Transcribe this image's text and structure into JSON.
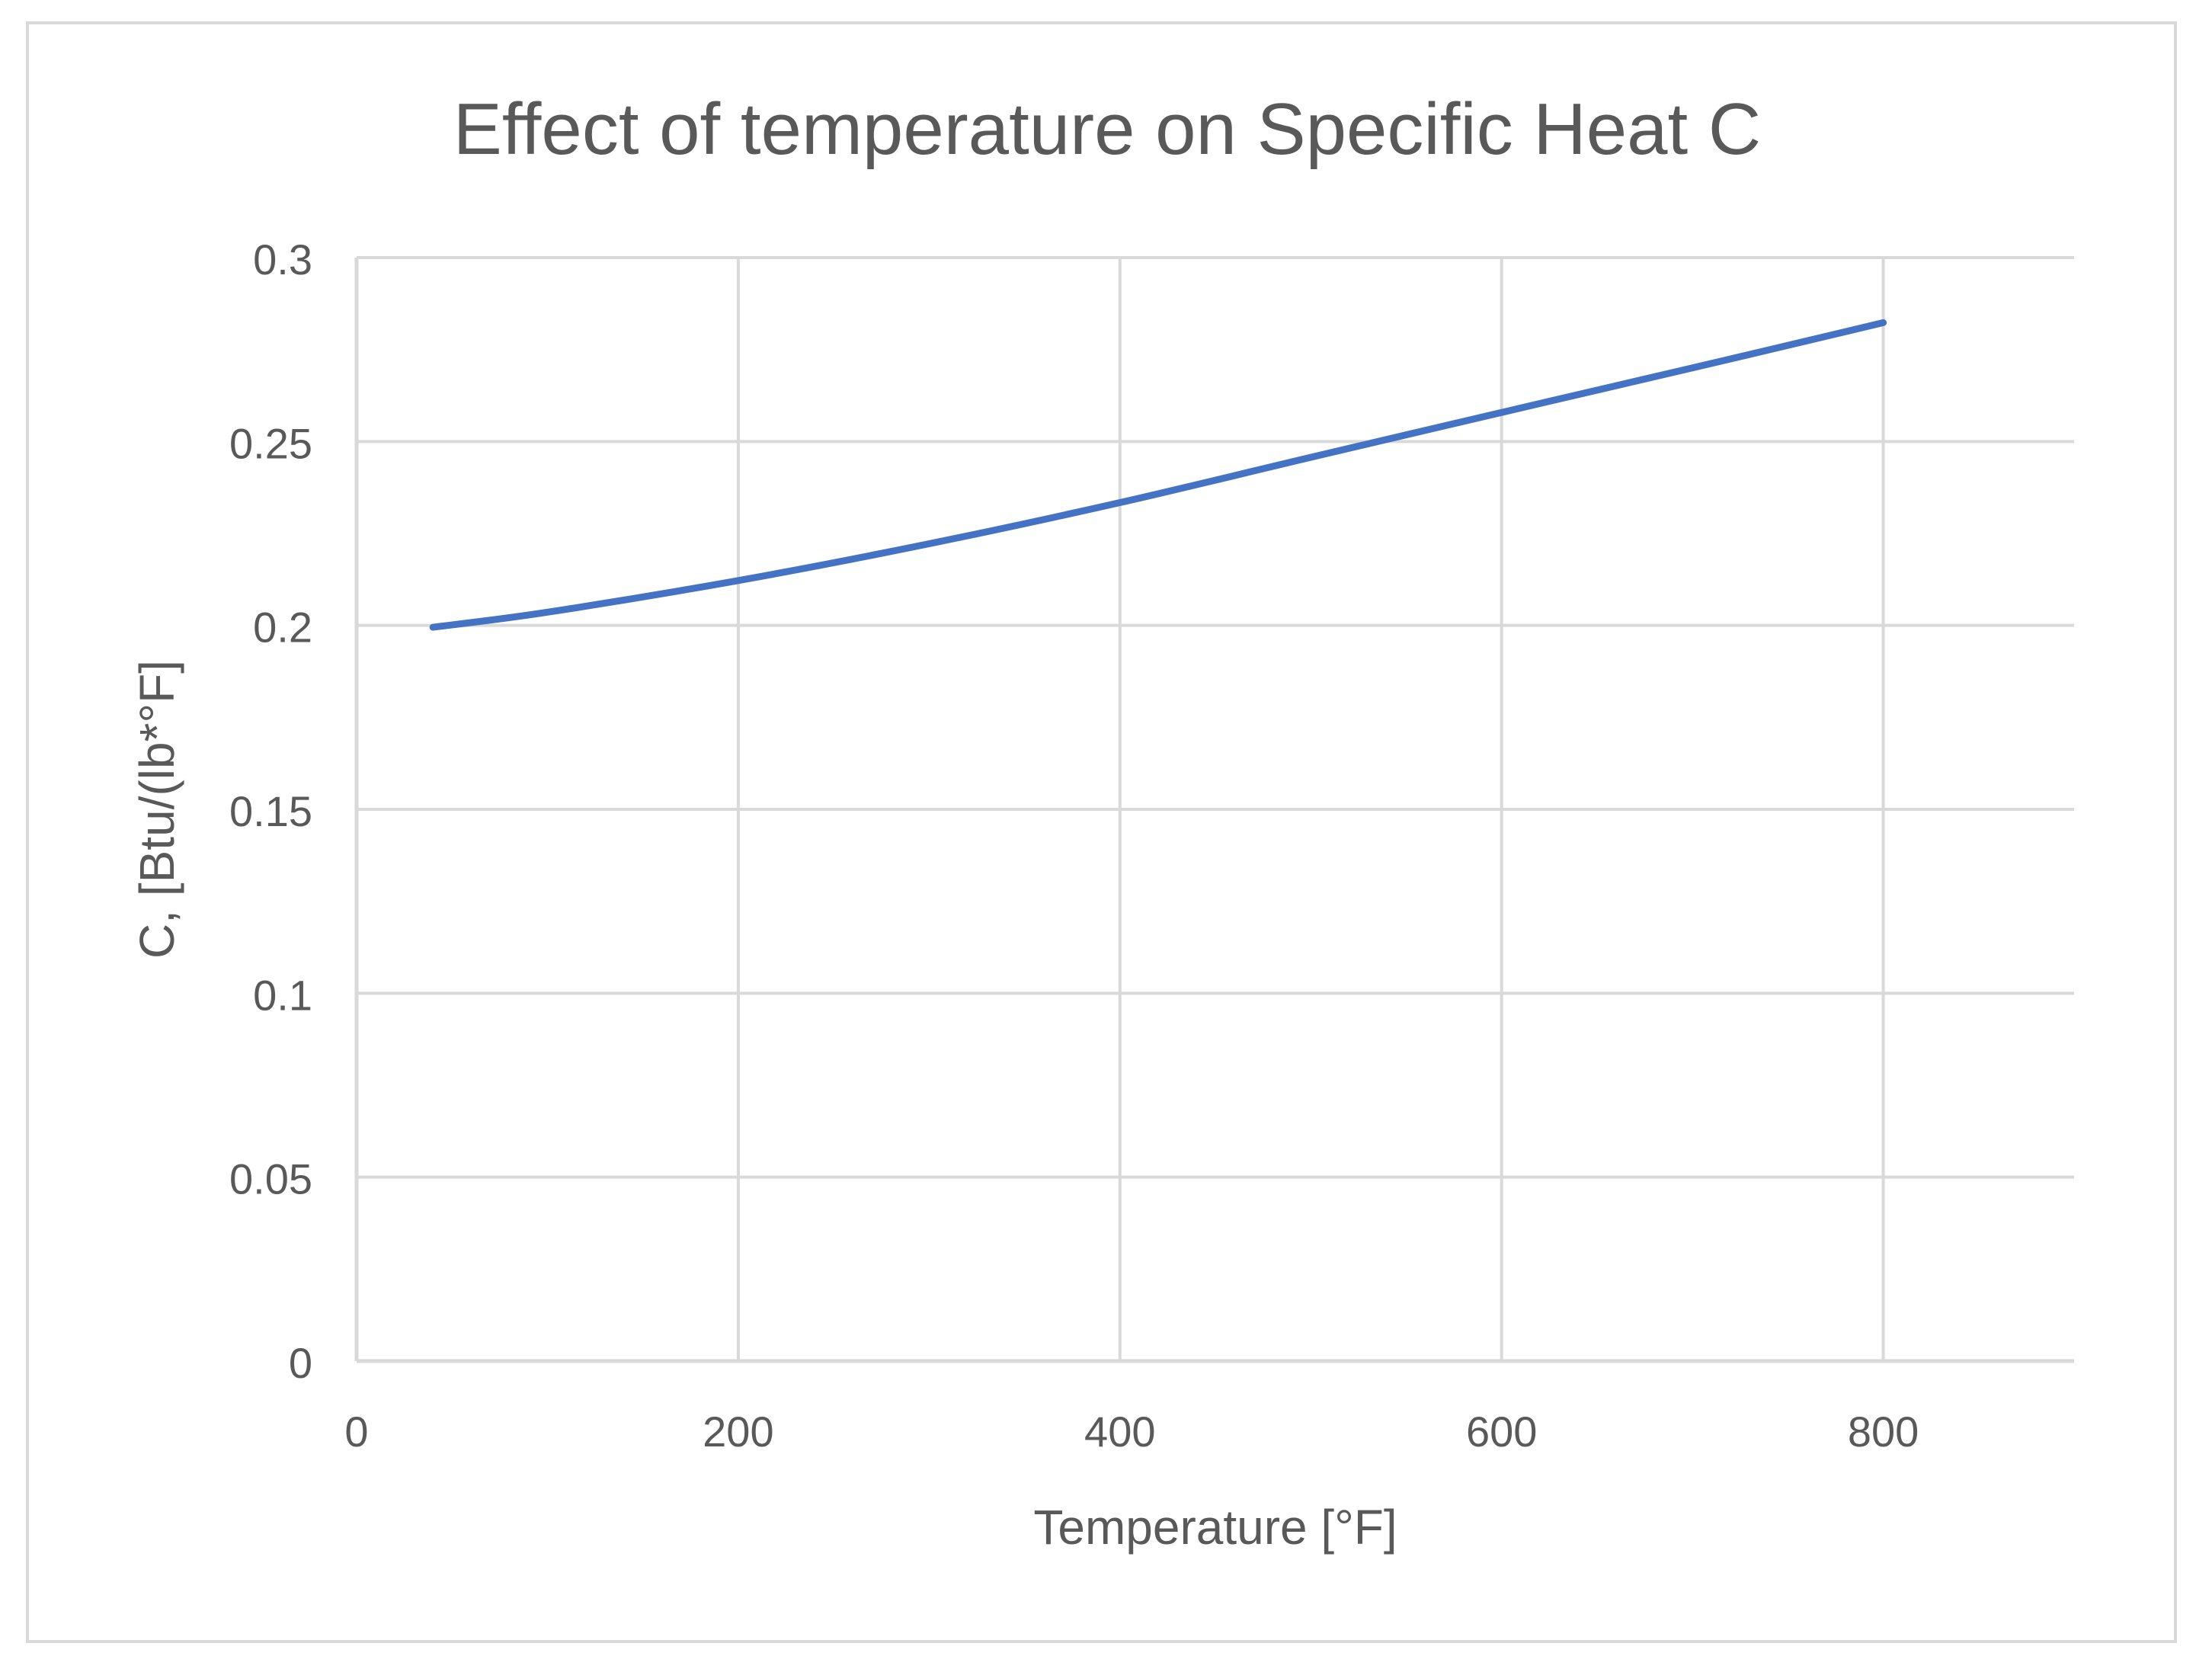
{
  "chart_data": {
    "type": "line",
    "title": "Effect of temperature on Specific Heat C",
    "xlabel": "Temperature [°F]",
    "ylabel": "C, [Btu/(lb*°F]",
    "xlim": [
      0,
      900
    ],
    "ylim": [
      0,
      0.3
    ],
    "x_ticks": [
      0,
      200,
      400,
      600,
      800
    ],
    "x_tick_labels": [
      "0",
      "200",
      "400",
      "600",
      "800"
    ],
    "y_ticks": [
      0,
      0.05,
      0.1,
      0.15,
      0.2,
      0.25,
      0.3
    ],
    "y_tick_labels": [
      "0",
      "0.05",
      "0.1",
      "0.15",
      "0.2",
      "0.25",
      "0.3"
    ],
    "x_gridlines": [
      200,
      400,
      600,
      800
    ],
    "grid": true,
    "legend": "none",
    "series": [
      {
        "name": "Specific Heat C",
        "color": "#4472c4",
        "x": [
          40,
          100,
          200,
          300,
          400,
          500,
          600,
          700,
          800
        ],
        "y": [
          0.1995,
          0.2036,
          0.2122,
          0.2222,
          0.2334,
          0.2457,
          0.2579,
          0.27,
          0.2823
        ]
      }
    ]
  },
  "colors": {
    "grid": "#d9d9d9",
    "text": "#595959",
    "frame": "#d9d9d9"
  }
}
